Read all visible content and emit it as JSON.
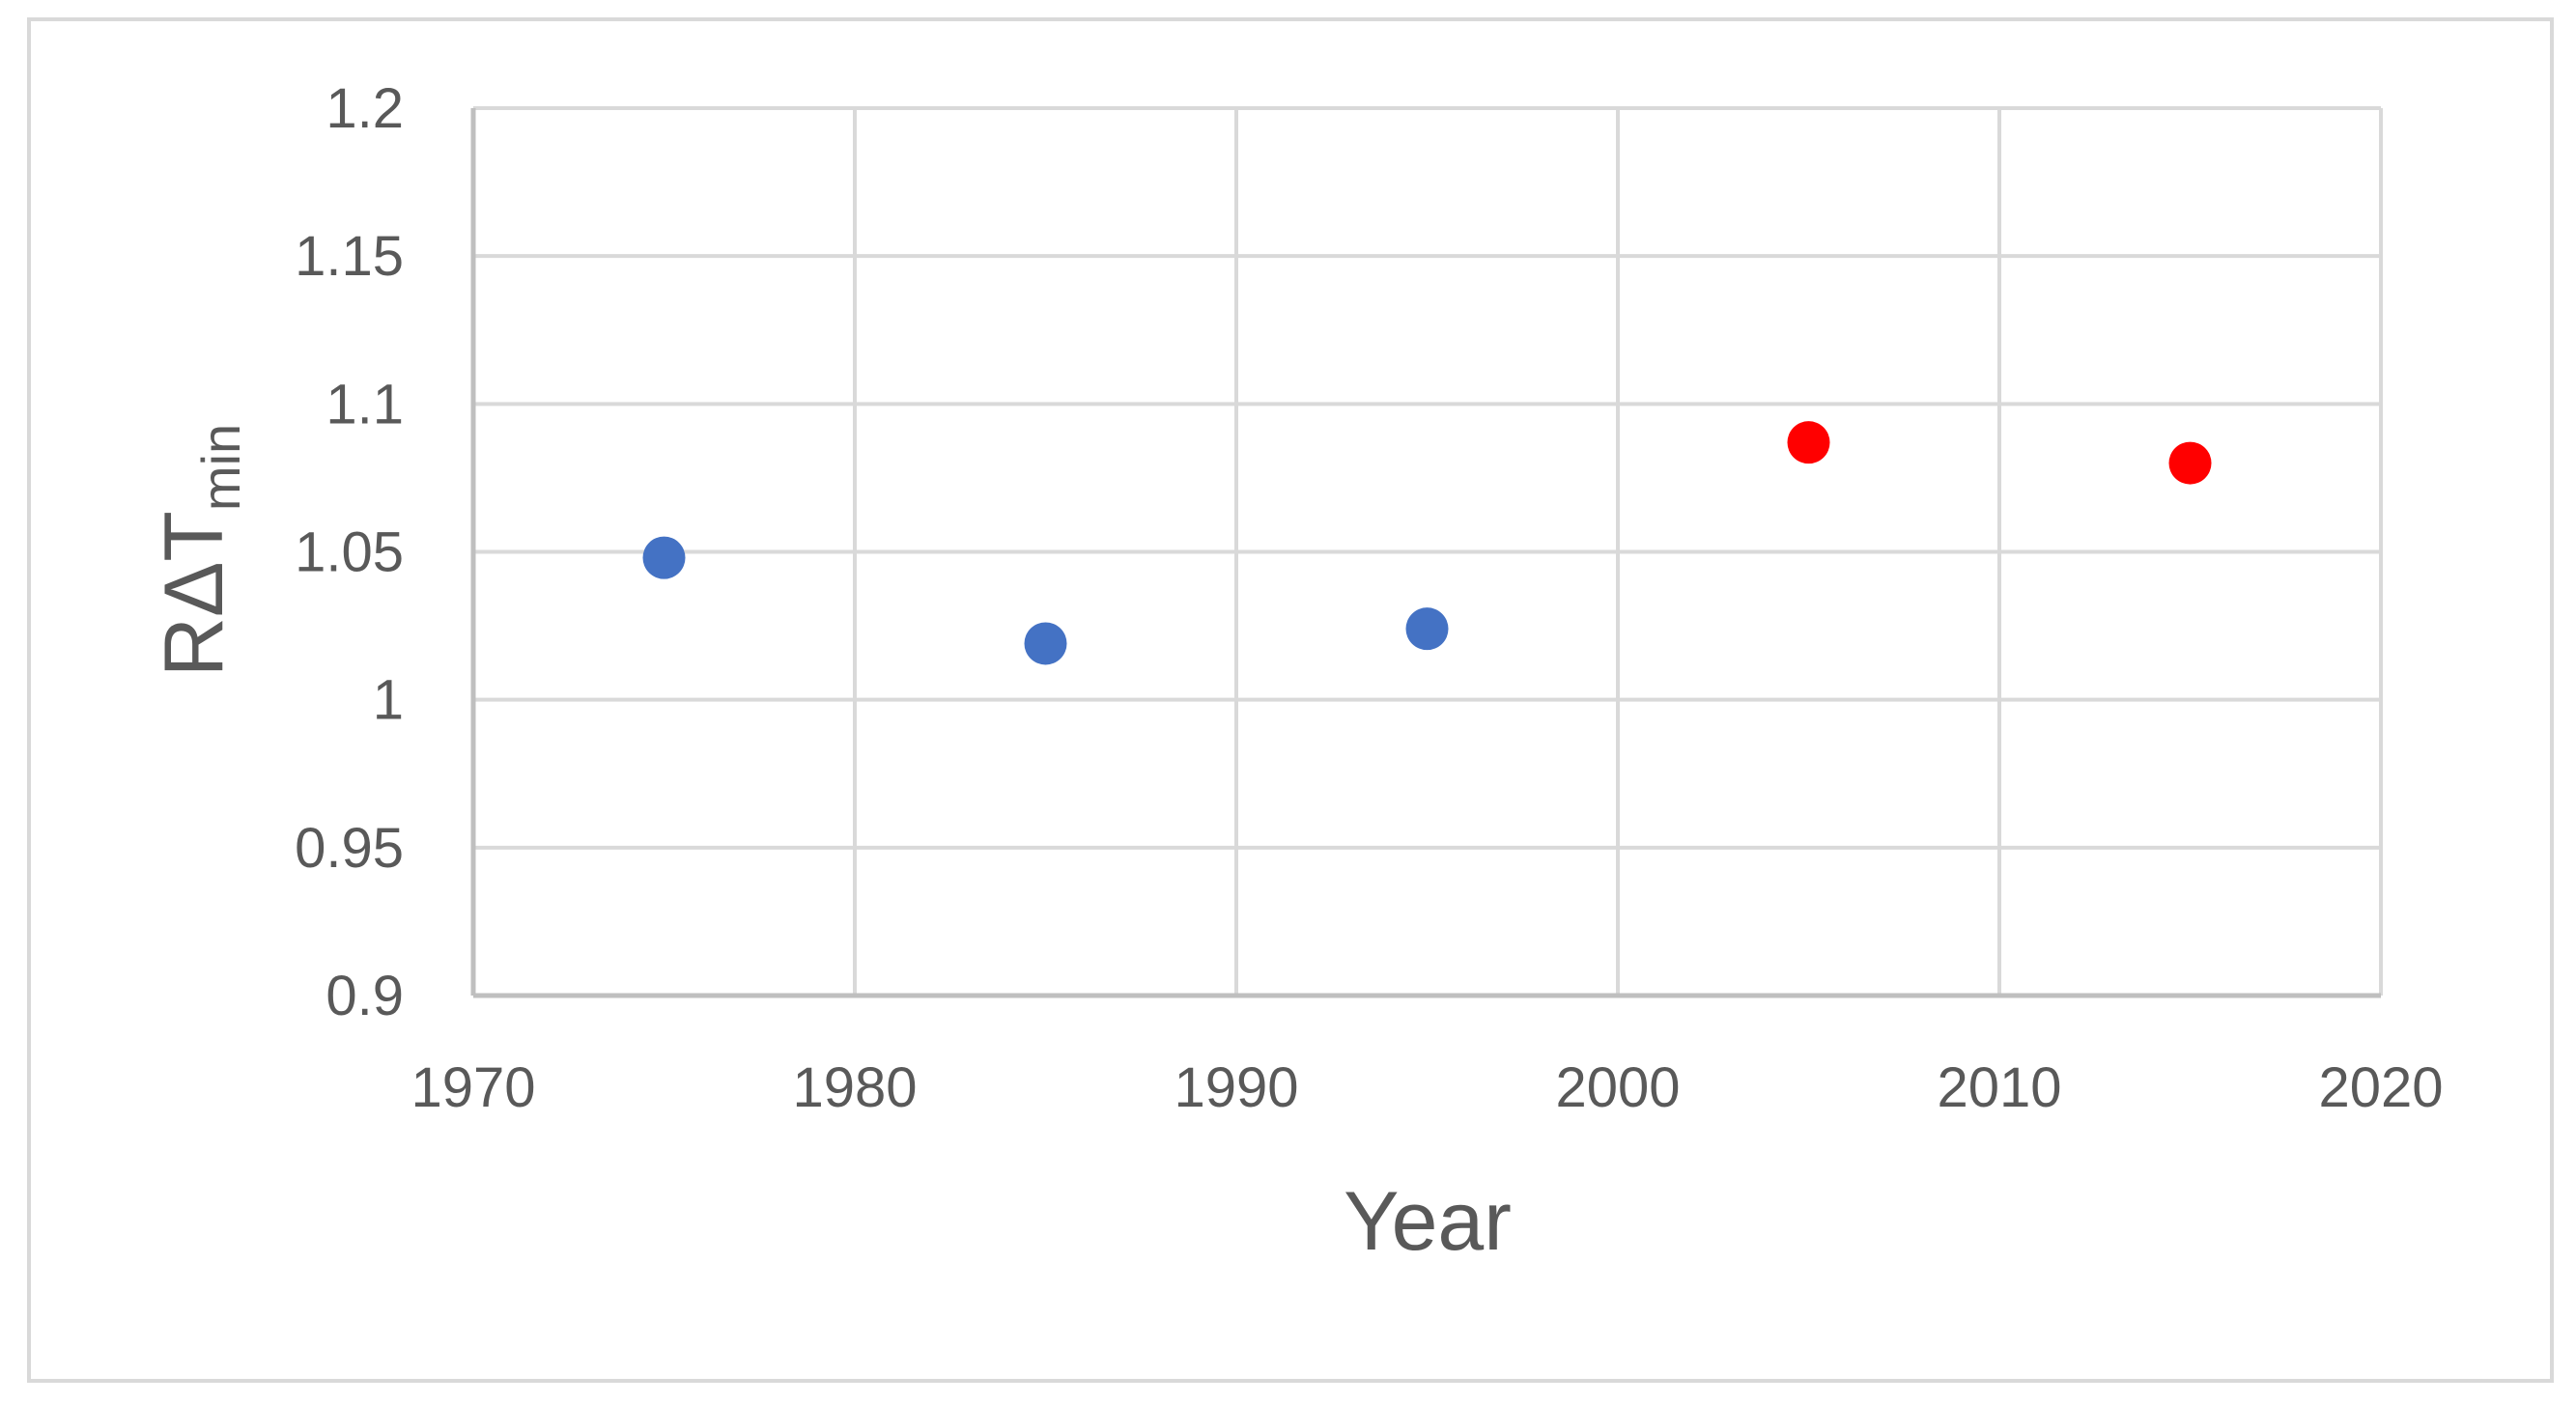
{
  "chart_data": {
    "type": "scatter",
    "title": "",
    "xlabel": "Year",
    "ylabel": {
      "main": "RΔT",
      "subscript": "min"
    },
    "xlim": [
      1970,
      2020
    ],
    "ylim": [
      0.9,
      1.2
    ],
    "x_ticks": [
      1970,
      1980,
      1990,
      2000,
      2010,
      2020
    ],
    "y_ticks": [
      "0.9",
      "0.95",
      "1",
      "1.05",
      "1.1",
      "1.15",
      "1.2"
    ],
    "grid": true,
    "legend": "none",
    "series": [
      {
        "color": "#4472C4",
        "points": [
          {
            "x": 1975,
            "y": 1.048
          },
          {
            "x": 1985,
            "y": 1.019
          },
          {
            "x": 1995,
            "y": 1.024
          }
        ]
      },
      {
        "color": "#FF0000",
        "points": [
          {
            "x": 2005,
            "y": 1.087
          },
          {
            "x": 2015,
            "y": 1.08
          }
        ]
      }
    ]
  }
}
